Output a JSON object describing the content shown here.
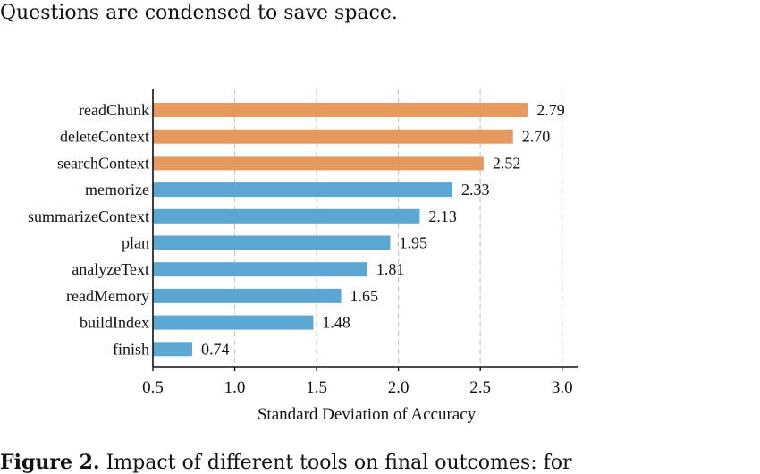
{
  "header": {
    "text": "Questions are condensed to save space."
  },
  "caption": {
    "label": "Figure 2.",
    "text": "Impact of different tools on final outcomes: for"
  },
  "chart_data": {
    "type": "bar",
    "orientation": "horizontal",
    "categories": [
      "readChunk",
      "deleteContext",
      "searchContext",
      "memorize",
      "summarizeContext",
      "plan",
      "analyzeText",
      "readMemory",
      "buildIndex",
      "finish"
    ],
    "values": [
      2.79,
      2.7,
      2.52,
      2.33,
      2.13,
      1.95,
      1.81,
      1.65,
      1.48,
      0.74
    ],
    "value_labels": [
      "2.79",
      "2.70",
      "2.52",
      "2.33",
      "2.13",
      "1.95",
      "1.81",
      "1.65",
      "1.48",
      "0.74"
    ],
    "highlight_count": 3,
    "colors": {
      "highlight": "#e6995e",
      "default": "#5ba6d2",
      "grid": "#c8c8c8",
      "axis": "#111111"
    },
    "xlabel": "Standard Deviation of Accuracy",
    "ylabel": "",
    "xlim": [
      0.5,
      3.1
    ],
    "xticks": [
      0.5,
      1.0,
      1.5,
      2.0,
      2.5,
      3.0
    ],
    "xtick_labels": [
      "0.5",
      "1.0",
      "1.5",
      "2.0",
      "2.5",
      "3.0"
    ],
    "grid": "vertical-dashed",
    "legend": "none"
  }
}
